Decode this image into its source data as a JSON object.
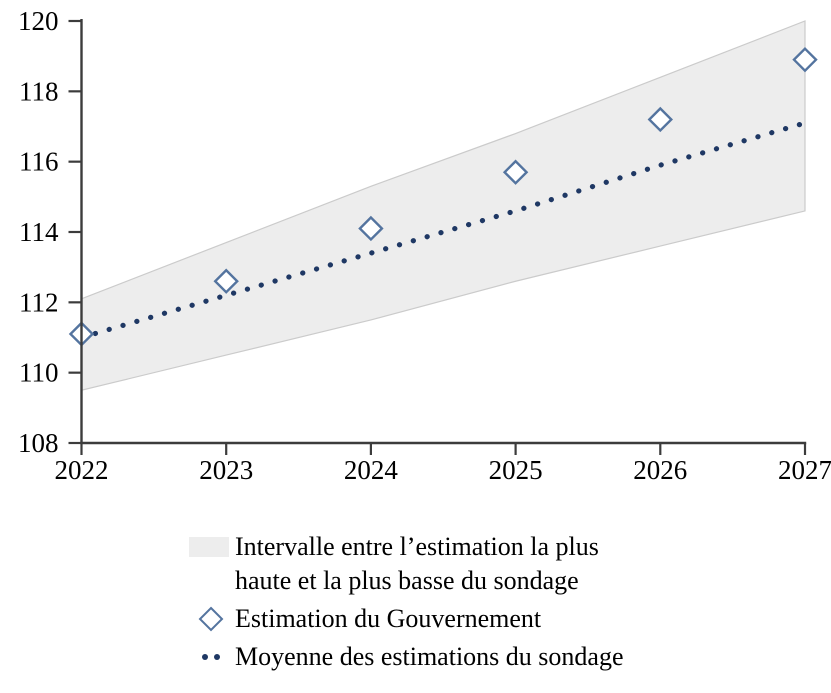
{
  "colors": {
    "band_fill": "#EDEDED",
    "band_edge": "#CBCBCB",
    "diamond_stroke": "#54749F",
    "diamond_fill": "#FFFFFF",
    "dotted_line": "#1F3864",
    "axis": "#3C3C3C",
    "text": "#000000"
  },
  "legend": {
    "interval_line1": "Intervalle entre l’estimation la plus",
    "interval_line2": "haute et la plus basse du sondage",
    "government": "Estimation du Gouvernement",
    "survey_mean": "Moyenne des estimations du sondage"
  },
  "chart_data": {
    "type": "line",
    "title": "",
    "xlabel": "",
    "ylabel": "",
    "x": [
      2022,
      2023,
      2024,
      2025,
      2026,
      2027
    ],
    "x_tick_labels": [
      "2022",
      "2023",
      "2024",
      "2025",
      "2026",
      "2027"
    ],
    "ylim": [
      108,
      120
    ],
    "yticks": [
      108,
      110,
      112,
      114,
      116,
      118,
      120
    ],
    "grid": false,
    "legend_position": "bottom",
    "series": [
      {
        "name": "Intervalle entre l’estimation la plus haute et la plus basse du sondage",
        "type": "band",
        "high": [
          112.1,
          113.7,
          115.3,
          116.8,
          118.4,
          120.0
        ],
        "low": [
          109.5,
          110.5,
          111.5,
          112.6,
          113.6,
          114.6
        ]
      },
      {
        "name": "Estimation du Gouvernement",
        "type": "scatter",
        "marker": "open-diamond",
        "values": [
          111.1,
          112.6,
          114.1,
          115.7,
          117.2,
          118.9
        ]
      },
      {
        "name": "Moyenne des estimations du sondage",
        "type": "dotted-line",
        "values": [
          111.0,
          112.2,
          113.4,
          114.6,
          115.9,
          117.1
        ]
      }
    ]
  }
}
